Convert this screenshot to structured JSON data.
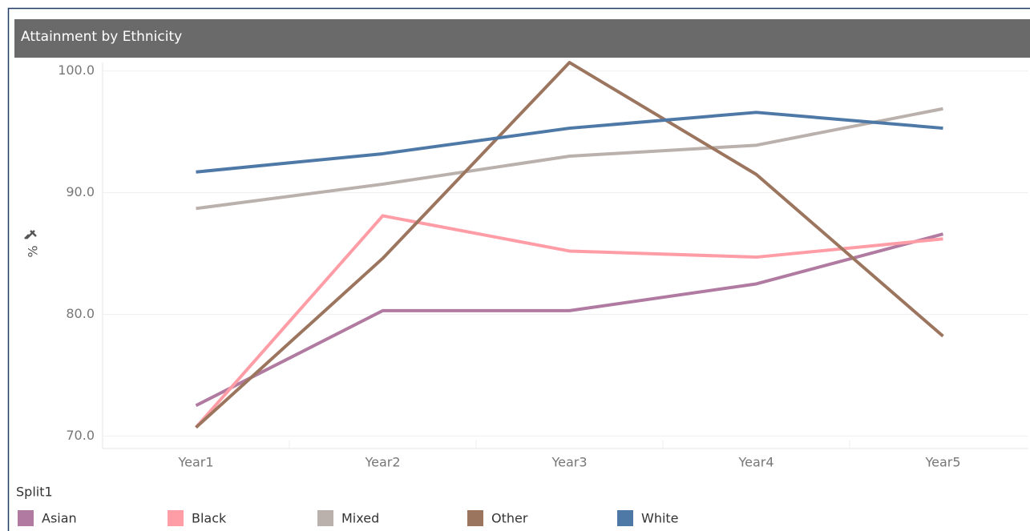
{
  "chart_data": {
    "type": "line",
    "title": "Attainment by Ethnicity",
    "y_label": "%",
    "categories": [
      "Year1",
      "Year2",
      "Year3",
      "Year4",
      "Year5"
    ],
    "series": [
      {
        "name": "Asian",
        "color": "#b07aa1",
        "values": [
          72.5,
          80.3,
          80.3,
          82.5,
          86.6
        ]
      },
      {
        "name": "Black",
        "color": "#ff9da7",
        "values": [
          70.7,
          88.1,
          85.2,
          84.7,
          86.2
        ]
      },
      {
        "name": "Mixed",
        "color": "#bab0ac",
        "values": [
          88.7,
          90.7,
          93.0,
          93.9,
          96.9
        ]
      },
      {
        "name": "Other",
        "color": "#9c755f",
        "values": [
          70.7,
          84.6,
          100.7,
          91.5,
          78.2
        ]
      },
      {
        "name": "White",
        "color": "#4e79a7",
        "values": [
          91.7,
          93.2,
          95.3,
          96.6,
          95.3
        ]
      }
    ],
    "ylim": [
      69.1,
      100.9
    ],
    "yticks": [
      {
        "value": 70,
        "label": "70.0"
      },
      {
        "value": 80,
        "label": "80.0"
      },
      {
        "value": 90,
        "label": "90.0"
      },
      {
        "value": 100,
        "label": "100.0"
      }
    ],
    "grid": true,
    "legend_title": "Split1",
    "legend_position": "bottom"
  }
}
